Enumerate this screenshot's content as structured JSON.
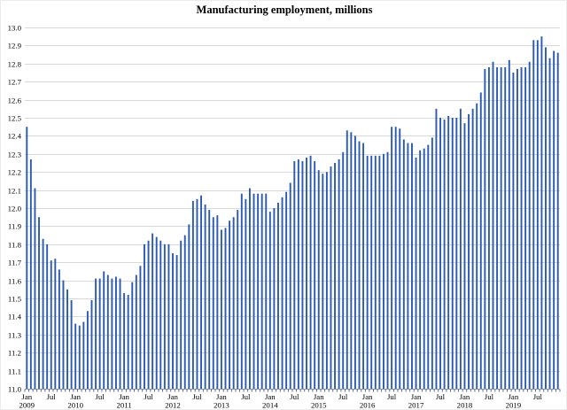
{
  "title": "Manufacturing employment, millions",
  "chart_data": {
    "type": "bar",
    "title": "Manufacturing employment, millions",
    "unit": "millions of employees",
    "ylim": [
      11.0,
      13.0
    ],
    "y_tick_step": 0.1,
    "grid": "horizontal",
    "legend": "none",
    "colors": {
      "bar": "#2a5ab4",
      "bar_light": "#9db2e0",
      "grid": "#d9d9d9",
      "axis": "#9b9b9b",
      "tick": "#44599b",
      "text": "#000000"
    },
    "y_ticks": [
      "13.0",
      "12.9",
      "12.8",
      "12.7",
      "12.6",
      "12.5",
      "12.4",
      "12.3",
      "12.2",
      "12.1",
      "12.0",
      "11.9",
      "11.8",
      "11.7",
      "11.6",
      "11.5",
      "11.4",
      "11.3",
      "11.2",
      "11.1",
      "11.0"
    ],
    "x_ticks": [
      {
        "i": 0,
        "l1": "Jan",
        "l2": "2009"
      },
      {
        "i": 6,
        "l1": "Jul"
      },
      {
        "i": 12,
        "l1": "Jan",
        "l2": "2010"
      },
      {
        "i": 18,
        "l1": "Jul"
      },
      {
        "i": 24,
        "l1": "Jan",
        "l2": "2011"
      },
      {
        "i": 30,
        "l1": "Jul"
      },
      {
        "i": 36,
        "l1": "Jan",
        "l2": "2012"
      },
      {
        "i": 42,
        "l1": "Jul"
      },
      {
        "i": 48,
        "l1": "Jan",
        "l2": "2013"
      },
      {
        "i": 54,
        "l1": "Jul"
      },
      {
        "i": 60,
        "l1": "Jan",
        "l2": "2014"
      },
      {
        "i": 66,
        "l1": "Jul"
      },
      {
        "i": 72,
        "l1": "Jan",
        "l2": "2015"
      },
      {
        "i": 78,
        "l1": "Jul"
      },
      {
        "i": 84,
        "l1": "Jan",
        "l2": "2016"
      },
      {
        "i": 90,
        "l1": "Jul"
      },
      {
        "i": 96,
        "l1": "Jan",
        "l2": "2017"
      },
      {
        "i": 102,
        "l1": "Jul"
      },
      {
        "i": 108,
        "l1": "Jan",
        "l2": "2018"
      },
      {
        "i": 114,
        "l1": "Jul"
      },
      {
        "i": 120,
        "l1": "Jan",
        "l2": "2019"
      },
      {
        "i": 126,
        "l1": "Jul"
      }
    ],
    "categories": [
      "2009-01",
      "2009-02",
      "2009-03",
      "2009-04",
      "2009-05",
      "2009-06",
      "2009-07",
      "2009-08",
      "2009-09",
      "2009-10",
      "2009-11",
      "2009-12",
      "2010-01",
      "2010-02",
      "2010-03",
      "2010-04",
      "2010-05",
      "2010-06",
      "2010-07",
      "2010-08",
      "2010-09",
      "2010-10",
      "2010-11",
      "2010-12",
      "2011-01",
      "2011-02",
      "2011-03",
      "2011-04",
      "2011-05",
      "2011-06",
      "2011-07",
      "2011-08",
      "2011-09",
      "2011-10",
      "2011-11",
      "2011-12",
      "2012-01",
      "2012-02",
      "2012-03",
      "2012-04",
      "2012-05",
      "2012-06",
      "2012-07",
      "2012-08",
      "2012-09",
      "2012-10",
      "2012-11",
      "2012-12",
      "2013-01",
      "2013-02",
      "2013-03",
      "2013-04",
      "2013-05",
      "2013-06",
      "2013-07",
      "2013-08",
      "2013-09",
      "2013-10",
      "2013-11",
      "2013-12",
      "2014-01",
      "2014-02",
      "2014-03",
      "2014-04",
      "2014-05",
      "2014-06",
      "2014-07",
      "2014-08",
      "2014-09",
      "2014-10",
      "2014-11",
      "2014-12",
      "2015-01",
      "2015-02",
      "2015-03",
      "2015-04",
      "2015-05",
      "2015-06",
      "2015-07",
      "2015-08",
      "2015-09",
      "2015-10",
      "2015-11",
      "2015-12",
      "2016-01",
      "2016-02",
      "2016-03",
      "2016-04",
      "2016-05",
      "2016-06",
      "2016-07",
      "2016-08",
      "2016-09",
      "2016-10",
      "2016-11",
      "2016-12",
      "2017-01",
      "2017-02",
      "2017-03",
      "2017-04",
      "2017-05",
      "2017-06",
      "2017-07",
      "2017-08",
      "2017-09",
      "2017-10",
      "2017-11",
      "2017-12",
      "2018-01",
      "2018-02",
      "2018-03",
      "2018-04",
      "2018-05",
      "2018-06",
      "2018-07",
      "2018-08",
      "2018-09",
      "2018-10",
      "2018-11",
      "2018-12",
      "2019-01",
      "2019-02",
      "2019-03",
      "2019-04",
      "2019-05",
      "2019-06",
      "2019-07",
      "2019-08",
      "2019-09",
      "2019-10",
      "2019-11",
      "2019-12"
    ],
    "series": [
      {
        "name": "Manufacturing employment (millions)",
        "values": [
          12.45,
          12.27,
          12.11,
          11.95,
          11.83,
          11.8,
          11.71,
          11.72,
          11.66,
          11.6,
          11.55,
          11.49,
          11.36,
          11.35,
          11.37,
          11.43,
          11.49,
          11.61,
          11.61,
          11.65,
          11.63,
          11.61,
          11.62,
          11.61,
          11.53,
          11.52,
          11.59,
          11.63,
          11.68,
          11.8,
          11.82,
          11.86,
          11.84,
          11.82,
          11.8,
          11.8,
          11.75,
          11.74,
          11.82,
          11.85,
          11.91,
          12.04,
          12.05,
          12.07,
          12.02,
          11.99,
          11.95,
          11.96,
          11.88,
          11.89,
          11.93,
          11.95,
          11.99,
          12.08,
          12.05,
          12.11,
          12.08,
          12.08,
          12.08,
          12.08,
          11.98,
          12.0,
          12.03,
          12.06,
          12.09,
          12.14,
          12.26,
          12.27,
          12.26,
          12.28,
          12.29,
          12.26,
          12.21,
          12.19,
          12.2,
          12.23,
          12.25,
          12.27,
          12.31,
          12.43,
          12.42,
          12.4,
          12.37,
          12.36,
          12.29,
          12.29,
          12.29,
          12.29,
          12.3,
          12.31,
          12.45,
          12.45,
          12.44,
          12.38,
          12.36,
          12.36,
          12.28,
          12.32,
          12.33,
          12.35,
          12.39,
          12.55,
          12.5,
          12.49,
          12.51,
          12.5,
          12.5,
          12.55,
          12.47,
          12.52,
          12.55,
          12.58,
          12.64,
          12.77,
          12.78,
          12.81,
          12.78,
          12.78,
          12.78,
          12.82,
          12.75,
          12.77,
          12.78,
          12.78,
          12.81,
          12.93,
          12.93,
          12.95,
          12.89,
          12.83,
          12.87,
          12.86
        ]
      }
    ]
  }
}
